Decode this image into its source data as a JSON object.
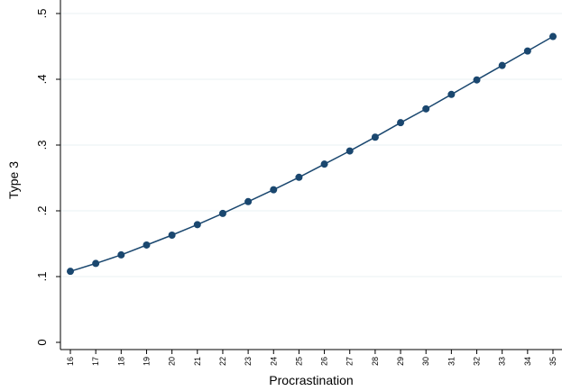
{
  "chart_data": {
    "type": "line",
    "xlabel": "Procrastination",
    "ylabel": "Type 3",
    "x": [
      16,
      17,
      18,
      19,
      20,
      21,
      22,
      23,
      24,
      25,
      26,
      27,
      28,
      29,
      30,
      31,
      32,
      33,
      34,
      35
    ],
    "y": [
      0.108,
      0.12,
      0.133,
      0.148,
      0.163,
      0.179,
      0.196,
      0.214,
      0.232,
      0.251,
      0.271,
      0.291,
      0.312,
      0.334,
      0.355,
      0.377,
      0.399,
      0.421,
      0.443,
      0.465
    ],
    "xlim": [
      16,
      35
    ],
    "ylim": [
      0,
      0.5
    ],
    "xticks": [
      "16",
      "17",
      "18",
      "19",
      "20",
      "21",
      "22",
      "23",
      "24",
      "25",
      "26",
      "27",
      "28",
      "29",
      "30",
      "31",
      "32",
      "33",
      "34",
      "35"
    ],
    "yticks": [
      {
        "value": 0,
        "label": "0"
      },
      {
        "value": 0.1,
        "label": ".1"
      },
      {
        "value": 0.2,
        "label": ".2"
      },
      {
        "value": 0.3,
        "label": ".3"
      },
      {
        "value": 0.4,
        "label": ".4"
      },
      {
        "value": 0.5,
        "label": ".5"
      }
    ],
    "grid": true,
    "colors": {
      "series": "#1a476f",
      "grid": "#eaf2f3",
      "axis": "#000000"
    }
  }
}
